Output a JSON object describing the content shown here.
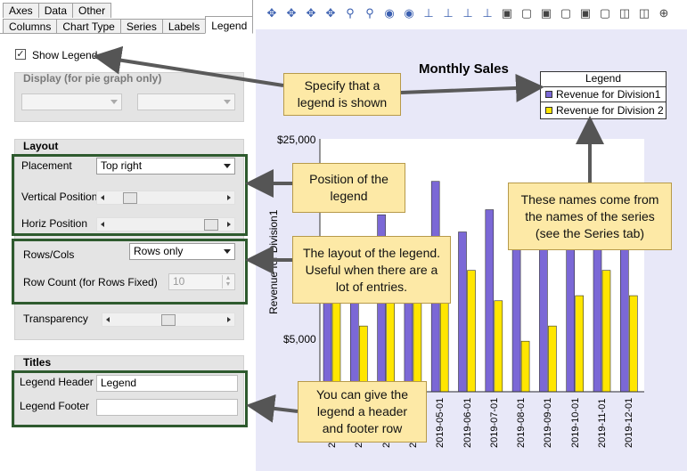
{
  "tabs_row1": [
    "Axes",
    "Data",
    "Other"
  ],
  "tabs_row2": [
    "Columns",
    "Chart Type",
    "Series",
    "Labels",
    "Legend"
  ],
  "show_legend": {
    "label": "Show Legend",
    "checked": true
  },
  "display_group": {
    "title": "Display (for pie graph only)"
  },
  "layout_group": {
    "title": "Layout",
    "placement_label": "Placement",
    "placement_value": "Top right",
    "vertical_label": "Vertical Position",
    "vertical_value": 0.15,
    "horiz_label": "Horiz Position",
    "horiz_value": 0.95,
    "rowscols_label": "Rows/Cols",
    "rowscols_value": "Rows only",
    "rowcount_label": "Row Count (for Rows Fixed)",
    "rowcount_value": "10",
    "transparency_label": "Transparency",
    "transparency_value": 0.5
  },
  "titles_group": {
    "title": "Titles",
    "header_label": "Legend Header",
    "header_value": "Legend",
    "footer_label": "Legend Footer",
    "footer_value": ""
  },
  "toolbar_icons": [
    "move-all-icon",
    "move-x-icon",
    "move-y-icon",
    "move-xy-icon",
    "zoom-in-icon",
    "zoom-out-icon",
    "eye-icon",
    "eye-left-icon",
    "axis-x-icon",
    "axis-arrow-icon",
    "axis-y-icon",
    "axis-down-icon",
    "frame-add-icon",
    "frame-icon",
    "frame-add2-icon",
    "frame2-icon",
    "frame-add3-icon",
    "frame3-icon",
    "cube-icon",
    "cube2-icon",
    "target-icon"
  ],
  "chart_data": {
    "type": "bar",
    "title": "Monthly Sales",
    "ylabel": "Revenue for Division1",
    "legend_header": "Legend",
    "legend_position": "top-right",
    "y_ticks": [
      "$25,000",
      "$5,000"
    ],
    "categories": [
      "2019-01-01",
      "2019-02-01",
      "2019-03-01",
      "2019-04-01",
      "2019-05-01",
      "2019-06-01",
      "2019-07-01",
      "2019-08-01",
      "2019-09-01",
      "2019-10-01",
      "2019-11-01",
      "2019-12-01"
    ],
    "ylim": [
      0,
      25000
    ],
    "series": [
      {
        "name": "Revenue for Division1",
        "color": "#7b68d6",
        "values": [
          12500,
          12500,
          17500,
          12500,
          20800,
          15800,
          18000,
          15800,
          15000,
          15000,
          15000,
          15000
        ]
      },
      {
        "name": "Revenue for Division 2",
        "color": "#ffe600",
        "values": [
          10000,
          6500,
          10000,
          10000,
          10000,
          12000,
          9000,
          5000,
          6500,
          9500,
          12000,
          9500
        ]
      }
    ]
  },
  "callouts": {
    "show": "Specify that a legend is shown",
    "position": "Position of the legend",
    "layout": "The layout of the legend. Useful when there are a lot of entries.",
    "names": "These names come from the names of the series (see the Series tab)",
    "header": "You can give the legend a header and footer row"
  },
  "colors": {
    "highlight_border": "#2e5a2e",
    "callout_bg": "#fde9a6",
    "chart_bg": "#e8e8f8"
  }
}
